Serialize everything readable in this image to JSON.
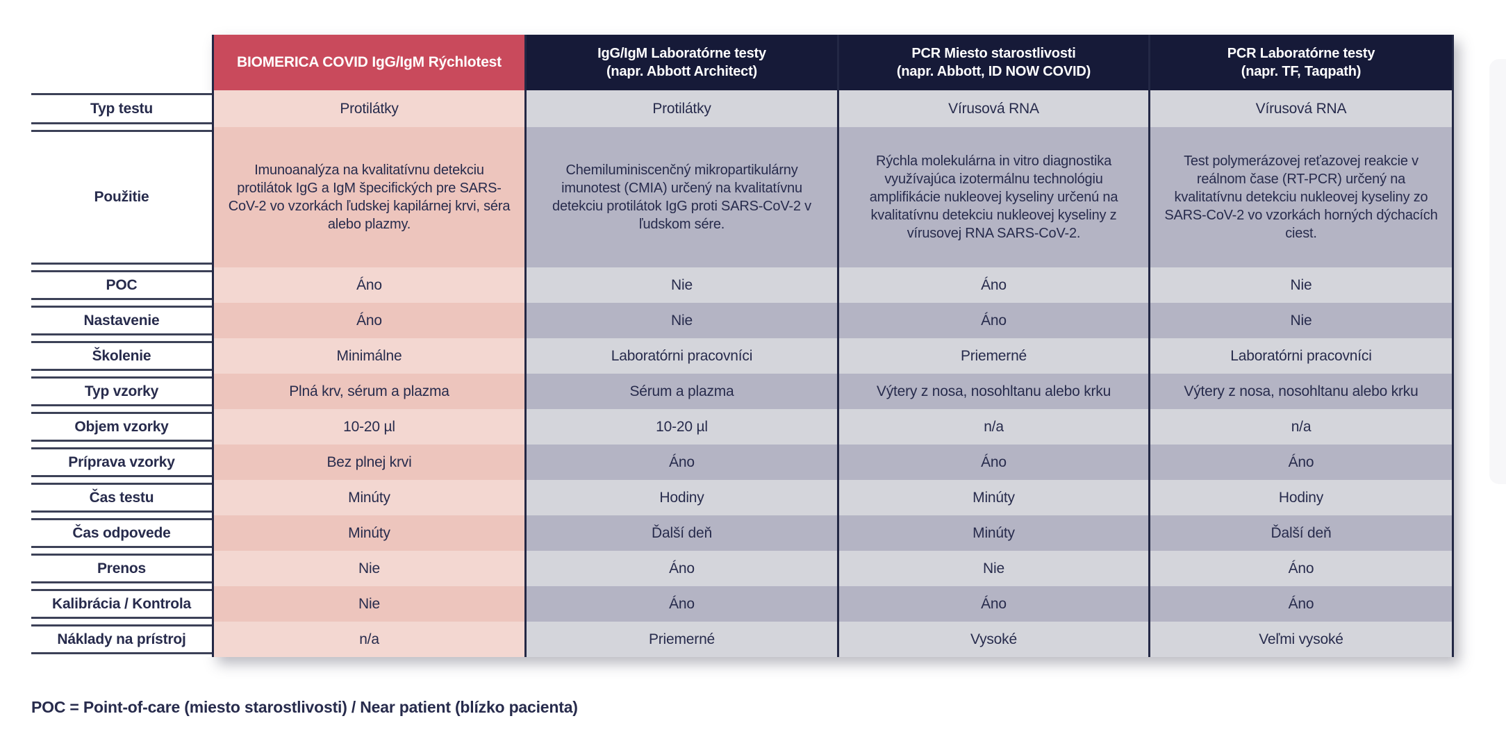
{
  "colors": {
    "accent_red": "#c94a5c",
    "header_navy": "#161a38",
    "divider_navy": "#232845",
    "label_line": "#3c4157",
    "text_navy": "#272b4c",
    "pink_light": "#f3d7d1",
    "pink_dark": "#edc5bd",
    "gray_light": "#d4d5db",
    "gray_dark": "#b4b4c4"
  },
  "table": {
    "columns": [
      {
        "title": "BIOMERICA COVID IgG/IgM Rýchlotest",
        "subtitle": ""
      },
      {
        "title": "IgG/IgM Laboratórne testy",
        "subtitle": "(napr. Abbott Architect)"
      },
      {
        "title": "PCR Miesto starostlivosti",
        "subtitle": "(napr. Abbott, ID NOW COVID)"
      },
      {
        "title": "PCR Laboratórne testy",
        "subtitle": "(napr. TF, Taqpath)"
      }
    ],
    "rows": [
      {
        "label": "Typ testu",
        "values": [
          "Protilátky",
          "Protilátky",
          "Vírusová RNA",
          "Vírusová RNA"
        ]
      },
      {
        "label": "Použitie",
        "values": [
          "Imunoanalýza na kvalitatívnu detekciu protilátok IgG a IgM špecifických pre SARS-CoV-2 vo vzorkách ľudskej kapilárnej krvi, séra alebo plazmy.",
          "Chemiluminiscenčný mikropartikulárny imunotest (CMIA) určený na kvalitatívnu detekciu protilátok IgG proti SARS-CoV-2 v ľudskom sére.",
          "Rýchla molekulárna in vitro diagnostika využívajúca izotermálnu technológiu amplifikácie nukleovej kyseliny určenú na kvalitatívnu detekciu nukleovej kyseliny z vírusovej RNA SARS-CoV-2.",
          "Test polymerázovej reťazovej reakcie v reálnom čase (RT-PCR) určený na kvalitatívnu detekciu nukleovej kyseliny zo SARS-CoV-2 vo vzorkách horných dýchacích ciest."
        ]
      },
      {
        "label": "POC",
        "values": [
          "Áno",
          "Nie",
          "Áno",
          "Nie"
        ]
      },
      {
        "label": "Nastavenie",
        "values": [
          "Áno",
          "Nie",
          "Áno",
          "Nie"
        ]
      },
      {
        "label": "Školenie",
        "values": [
          "Minimálne",
          "Laboratórni pracovníci",
          "Priemerné",
          "Laboratórni pracovníci"
        ]
      },
      {
        "label": "Typ vzorky",
        "values": [
          "Plná krv, sérum a plazma",
          "Sérum a plazma",
          "Výtery z nosa, nosohltanu alebo krku",
          "Výtery z nosa, nosohltanu alebo krku"
        ]
      },
      {
        "label": "Objem vzorky",
        "values": [
          "10-20 µl",
          "10-20 µl",
          "n/a",
          "n/a"
        ]
      },
      {
        "label": "Príprava vzorky",
        "values": [
          "Bez plnej krvi",
          "Áno",
          "Áno",
          "Áno"
        ]
      },
      {
        "label": "Čas testu",
        "values": [
          "Minúty",
          "Hodiny",
          "Minúty",
          "Hodiny"
        ]
      },
      {
        "label": "Čas odpovede",
        "values": [
          "Minúty",
          "Ďalší deň",
          "Minúty",
          "Ďalší deň"
        ]
      },
      {
        "label": "Prenos",
        "values": [
          "Nie",
          "Áno",
          "Nie",
          "Áno"
        ]
      },
      {
        "label": "Kalibrácia / Kontrola",
        "values": [
          "Nie",
          "Áno",
          "Áno",
          "Áno"
        ]
      },
      {
        "label": "Náklady na prístroj",
        "values": [
          "n/a",
          "Priemerné",
          "Vysoké",
          "Veľmi vysoké"
        ]
      }
    ]
  },
  "footnote": "POC = Point-of-care (miesto starostlivosti) / Near patient (blízko pacienta)"
}
